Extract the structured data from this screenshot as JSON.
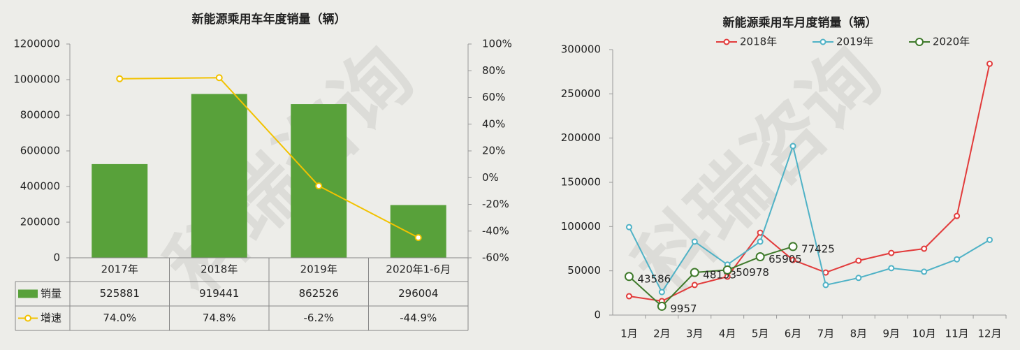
{
  "watermark": "科瑞咨询",
  "chart_data": [
    {
      "type": "bar",
      "title": "新能源乘用车年度销量（辆）",
      "categories": [
        "2017年",
        "2018年",
        "2019年",
        "2020年1-6月"
      ],
      "series": [
        {
          "name": "销量",
          "color": "#58a13a",
          "values": [
            525881,
            919441,
            862526,
            296004
          ]
        },
        {
          "name": "增速",
          "type": "line",
          "axis": "y2",
          "color": "#f2c200",
          "values": [
            74.0,
            74.8,
            -6.2,
            -44.9
          ],
          "value_labels": [
            "74.0%",
            "74.8%",
            "-6.2%",
            "-44.9%"
          ]
        }
      ],
      "ylim": [
        0,
        1200000
      ],
      "yticks": [
        0,
        200000,
        400000,
        600000,
        800000,
        1000000,
        1200000
      ],
      "y2lim": [
        -60,
        100
      ],
      "y2ticks": [
        {
          "value": -60,
          "label": "-60%"
        },
        {
          "value": -40,
          "label": "-40%"
        },
        {
          "value": -20,
          "label": "-20%"
        },
        {
          "value": 0,
          "label": "0%"
        },
        {
          "value": 20,
          "label": "20%"
        },
        {
          "value": 40,
          "label": "40%"
        },
        {
          "value": 60,
          "label": "60%"
        },
        {
          "value": 80,
          "label": "80%"
        },
        {
          "value": 100,
          "label": "100%"
        }
      ],
      "data_table": true,
      "grid": false
    },
    {
      "type": "line",
      "title": "新能源乘用车月度销量（辆）",
      "categories": [
        "1月",
        "2月",
        "3月",
        "4月",
        "5月",
        "6月",
        "7月",
        "8月",
        "9月",
        "10月",
        "11月",
        "12月"
      ],
      "series": [
        {
          "name": "2018年",
          "color": "#e23b3b",
          "values": [
            21300,
            15800,
            34000,
            43400,
            93100,
            62300,
            48100,
            61500,
            70200,
            75000,
            112000,
            284000
          ]
        },
        {
          "name": "2019年",
          "color": "#4fb2c6",
          "values": [
            99400,
            26000,
            83000,
            57000,
            83000,
            191000,
            34000,
            42000,
            53000,
            49000,
            63000,
            85000
          ]
        },
        {
          "name": "2020年",
          "color": "#3f7a2b",
          "values": [
            43586,
            9957,
            48153,
            50978,
            65905,
            77425,
            null,
            null,
            null,
            null,
            null,
            null
          ],
          "data_labels": true
        }
      ],
      "ylim": [
        0,
        300000
      ],
      "yticks": [
        0,
        50000,
        100000,
        150000,
        200000,
        250000,
        300000
      ],
      "legend": "top",
      "grid": false
    }
  ]
}
